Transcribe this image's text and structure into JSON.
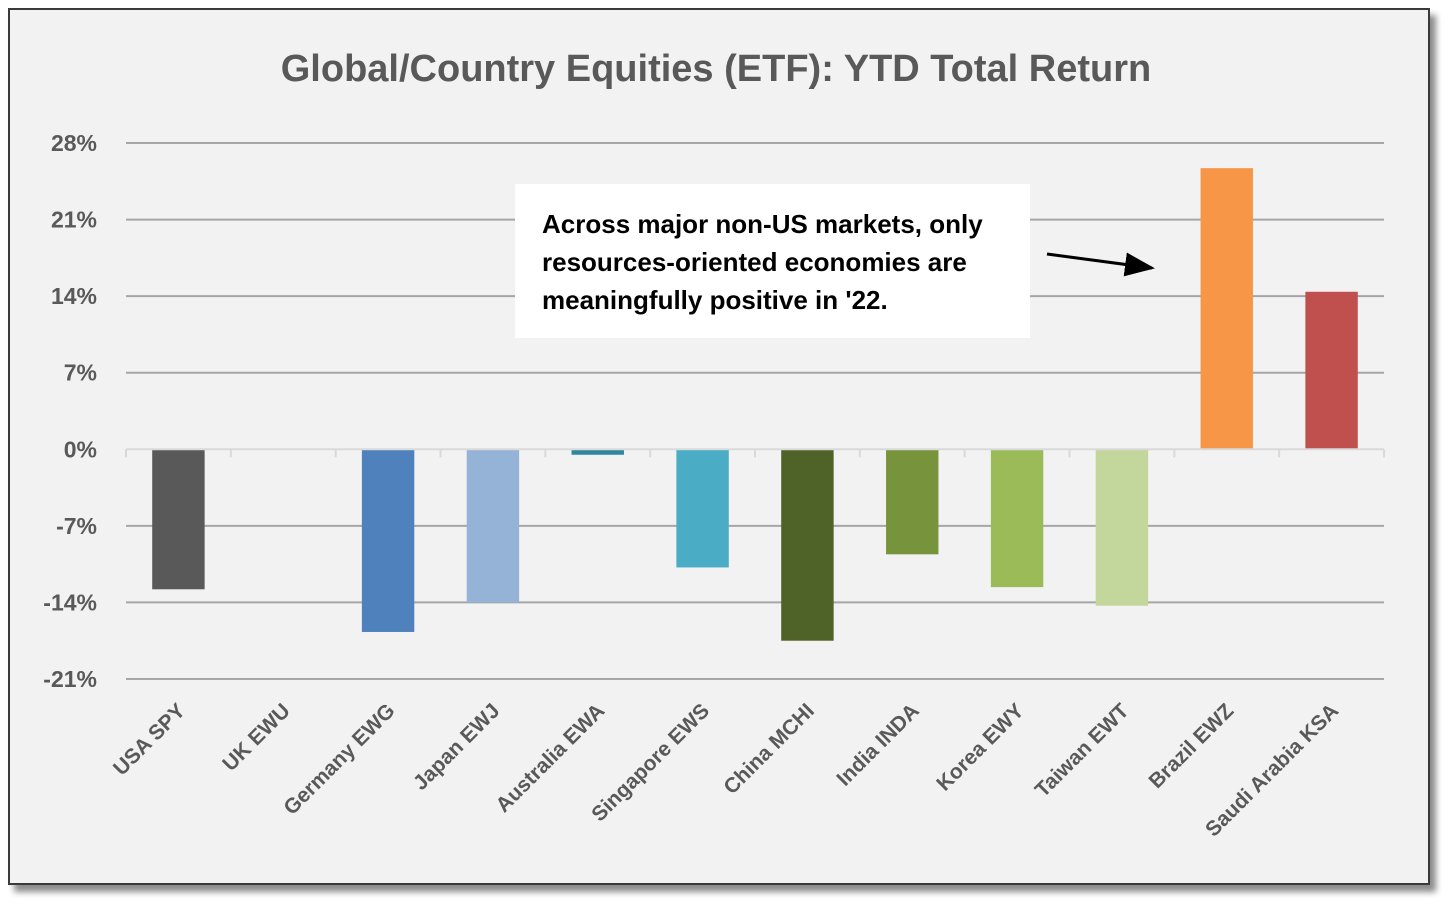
{
  "chart_data": {
    "type": "bar",
    "title": "Global/Country Equities (ETF): YTD Total Return",
    "xlabel": "",
    "ylabel": "",
    "categories": [
      "USA SPY",
      "UK EWU",
      "Germany EWG",
      "Japan EWJ",
      "Australia EWA",
      "Singapore EWS",
      "China MCHI",
      "India INDA",
      "Korea EWY",
      "Taiwan EWT",
      "Brazil EWZ",
      "Saudi Arabia KSA"
    ],
    "values": [
      -12.8,
      0.0,
      -16.7,
      -14.0,
      -0.5,
      -10.8,
      -17.5,
      -9.6,
      -12.6,
      -14.3,
      25.7,
      14.4
    ],
    "colors": [
      "#595959",
      "#595959",
      "#4f81bd",
      "#95b3d7",
      "#31859c",
      "#4bacc6",
      "#4f6228",
      "#77933c",
      "#9bbb59",
      "#c3d69b",
      "#f79646",
      "#c0504d"
    ],
    "value_unit": "%",
    "ylim": [
      -21,
      28
    ],
    "yticks": [
      "28%",
      "21%",
      "14%",
      "7%",
      "0%",
      "-7%",
      "-14%",
      "-21%"
    ],
    "ytick_values": [
      28,
      21,
      14,
      7,
      0,
      -7,
      -14,
      -21
    ],
    "grid": true,
    "legend": "none",
    "annotation": {
      "lines": [
        "Across major non-US markets, only",
        "resources-oriented economies are",
        "meaningfully positive in '22."
      ],
      "points_to": "Brazil EWZ"
    }
  }
}
